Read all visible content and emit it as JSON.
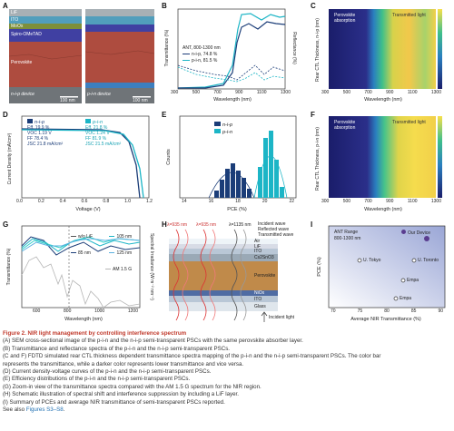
{
  "panels": {
    "A": {
      "label": "A",
      "layers": [
        "LiF",
        "ITO",
        "MoOx",
        "Spiro-OMeTAD",
        "Perovskite"
      ],
      "left_caption": "n-i-p device",
      "right_caption": "p-i-n device",
      "scalebar": "100 nm"
    },
    "B": {
      "label": "B",
      "ylabel_left": "Transmittance (%)",
      "ylabel_right": "Reflectance (%)",
      "xlabel": "Wavelength (nm)",
      "legend_title": "ANT, 800-1300 nm",
      "legend_1": "n-i-p, 74.8 %",
      "legend_2": "p-i-n, 81.5 %",
      "xticks": [
        "300",
        "500",
        "700",
        "900",
        "1100",
        "1300"
      ],
      "yticks_left": [
        "0",
        "25",
        "50",
        "75",
        "100"
      ],
      "yticks_right": [
        "0",
        "25",
        "50",
        "75"
      ]
    },
    "C": {
      "label": "C",
      "ylabel": "Rear CTL Thickness, n-i-p (nm)",
      "xlabel": "Wavelength (nm)",
      "region_1": "Perovskite absorption",
      "region_2": "Transmitted light",
      "yticks": [
        "0",
        "50",
        "100",
        "150",
        "200"
      ],
      "xticks": [
        "300",
        "500",
        "700",
        "900",
        "1100",
        "1300"
      ]
    },
    "D": {
      "label": "D",
      "ylabel": "Current Density (mA/cm²)",
      "xlabel": "Voltage (V)",
      "nip_name": "n-i-p",
      "nip_eff": "Eff.  19.9 %",
      "nip_voc": "VOC  1.19 V",
      "nip_ff": "FF  78.4 %",
      "nip_jsc": "JSC  21.8 mA/cm²",
      "pin_name": "p-i-n",
      "pin_eff": "Eff.  21.8 %",
      "pin_voc": "VOC  1.24 V",
      "pin_ff": "FF  81.9 %",
      "pin_jsc": "JSC  21.5 mA/cm²",
      "xticks": [
        "0.0",
        "0.2",
        "0.4",
        "0.6",
        "0.8",
        "1.0",
        "1.2"
      ],
      "yticks": [
        "0",
        "5",
        "10",
        "15",
        "20",
        "25"
      ]
    },
    "E": {
      "label": "E",
      "ylabel": "Counts",
      "xlabel": "PCE (%)",
      "legend_1": "n-i-p",
      "legend_2": "p-i-n",
      "xticks": [
        "14",
        "16",
        "18",
        "20",
        "22"
      ],
      "yticks": [
        "0",
        "5",
        "10",
        "15"
      ]
    },
    "F": {
      "label": "F",
      "ylabel": "Rear CTL Thickness, p-i-n (nm)",
      "xlabel": "Wavelength (nm)",
      "region_1": "Perovskite absorption",
      "region_2": "Transmitted light",
      "yticks": [
        "0",
        "50",
        "100",
        "150",
        "200"
      ],
      "xticks": [
        "300",
        "500",
        "700",
        "900",
        "1100",
        "1300"
      ]
    },
    "G": {
      "label": "G",
      "ylabel_left": "Transmittance (%)",
      "ylabel_right": "Spectral Irradiance (W m⁻² nm⁻¹)",
      "xlabel": "Wavelength (nm)",
      "legend": [
        "w/o LiF",
        "85 nm",
        "105 nm",
        "125 nm",
        "AM 1.5 G"
      ],
      "xticks": [
        "600",
        "800",
        "1000",
        "1200"
      ],
      "yticks": [
        "0",
        "25",
        "50",
        "75"
      ]
    },
    "H": {
      "label": "H",
      "top_labels": [
        "λ=935 nm",
        "λ=935 nm",
        "λ=1135 nm"
      ],
      "legend": [
        "Incident wave",
        "Reflected wave",
        "Transmitted wave"
      ],
      "layers": [
        "Air",
        "LiF",
        "ITO",
        "Cs2SnO3",
        "Perovskite",
        "NiOx",
        "ITO",
        "Glass"
      ],
      "incident": "Incident light"
    },
    "I": {
      "label": "I",
      "ylabel": "PCE (%)",
      "xlabel": "Average NIR Transmittance (%)",
      "note_1": "ANT Range",
      "note_2": "800-1300 nm",
      "legend": "Our Device",
      "points": [
        "U. Tokyo",
        "U. Toronto",
        "Empa",
        "Empa"
      ],
      "xticks": [
        "70",
        "75",
        "80",
        "85",
        "90"
      ],
      "yticks": [
        "16",
        "18",
        "20",
        "22"
      ]
    }
  },
  "caption": {
    "title": "Figure 2.  NIR light management by controlling interference spectrum",
    "lines": [
      "(A) SEM cross-sectional image of the p-i-n and the n-i-p semi-transparent PSCs with the same perovskite absorber layer.",
      "(B) Transmittance and reflectance spectra of the p-i-n and the n-i-p semi-transparent PSCs.",
      "(C and F) FDTD simulated rear CTL thickness dependent transmittance spectra mapping of the p-i-n and the n-i-p semi-transparent PSCs. The color bar",
      "represents the transmittance, while a darker color represents lower transmittance and vice versa.",
      "(D) Current density-voltage curves of the p-i-n and the n-i-p semi-transparent PSCs.",
      "(E) Efficiency distributions of the p-i-n and the n-i-p semi-transparent PSCs.",
      "(G) Zoom-in view of the transmittance spectra compared with the AM 1.5 G spectrum for the NIR region.",
      "(H) Schematic illustration of spectral shift and interference suppression by including a LiF layer.",
      "(I) Summary of PCEs and average NIR transmittance of semi-transparent PSCs reported."
    ],
    "see_also_prefix": "See also ",
    "see_also_link": "Figures S3–S8",
    "see_also_suffix": "."
  }
}
